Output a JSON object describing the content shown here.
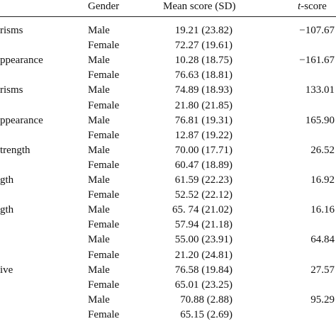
{
  "header": {
    "gender": "Gender",
    "mean": "Mean score (SD)",
    "t_italic": "t",
    "t_rest": "-score"
  },
  "rows": [
    {
      "label": "risms",
      "gender": "Male",
      "mean": "19.21 (23.82)",
      "t": "−107.67"
    },
    {
      "label": "",
      "gender": "Female",
      "mean": "72.27 (19.61)",
      "t": ""
    },
    {
      "label": "ppearance",
      "gender": "Male",
      "mean": "10.28 (18.75)",
      "t": "−161.67"
    },
    {
      "label": "",
      "gender": "Female",
      "mean": "76.63 (18.81)",
      "t": ""
    },
    {
      "label": "risms",
      "gender": "Male",
      "mean": "74.89 (18.93)",
      "t": "133.01"
    },
    {
      "label": "",
      "gender": "Female",
      "mean": "21.80 (21.85)",
      "t": ""
    },
    {
      "label": "ppearance",
      "gender": "Male",
      "mean": "76.81 (19.31)",
      "t": "165.90"
    },
    {
      "label": "",
      "gender": "Female",
      "mean": "12.87 (19.22)",
      "t": ""
    },
    {
      "label": "trength",
      "gender": "Male",
      "mean": "70.00 (17.71)",
      "t": "26.52"
    },
    {
      "label": "",
      "gender": "Female",
      "mean": "60.47 (18.89)",
      "t": ""
    },
    {
      "label": "gth",
      "gender": "Male",
      "mean": "61.59 (22.23)",
      "t": "16.92"
    },
    {
      "label": "",
      "gender": "Female",
      "mean": "52.52 (22.12)",
      "t": ""
    },
    {
      "label": "gth",
      "gender": "Male",
      "mean": "65. 74 (21.02)",
      "t": "16.16"
    },
    {
      "label": "",
      "gender": "Female",
      "mean": "57.94 (21.18)",
      "t": ""
    },
    {
      "label": "",
      "gender": "Male",
      "mean": "55.00 (23.91)",
      "t": "64.84"
    },
    {
      "label": "",
      "gender": "Female",
      "mean": "21.20 (24.81)",
      "t": ""
    },
    {
      "label": "ive",
      "gender": "Male",
      "mean": "76.58 (19.84)",
      "t": "27.57"
    },
    {
      "label": "",
      "gender": "Female",
      "mean": "65.01 (23.25)",
      "t": ""
    },
    {
      "label": "",
      "gender": "Male",
      "mean": "70.88 (2.88)",
      "t": "95.29"
    },
    {
      "label": "",
      "gender": "Female",
      "mean": "65.15 (2.69)",
      "t": ""
    }
  ]
}
